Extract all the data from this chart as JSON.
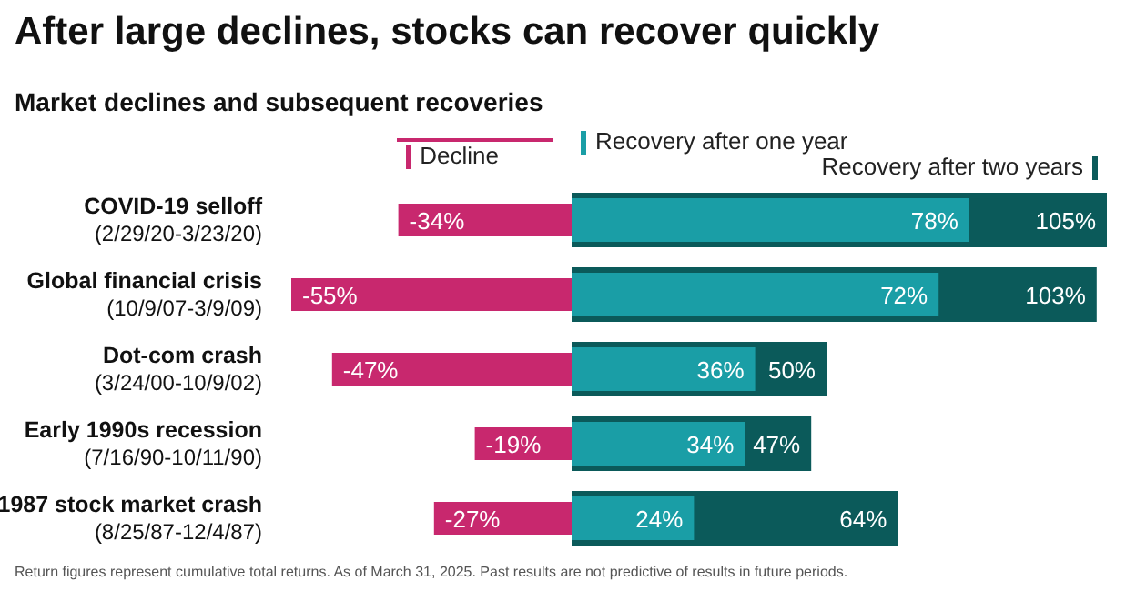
{
  "chart_data": {
    "type": "bar",
    "orientation": "horizontal",
    "title": "After large declines, stocks can recover quickly",
    "subtitle": "Market declines and subsequent recoveries",
    "categories": [
      "COVID-19 selloff\n(2/29/20-3/23/20)",
      "Global financial crisis\n(10/9/07-3/9/09)",
      "Dot-com crash\n(3/24/00-10/9/02)",
      "Early 1990s recession\n(7/16/90-10/11/90)",
      "1987 stock market crash\n(8/25/87-12/4/87)"
    ],
    "series": [
      {
        "name": "Decline",
        "color": "#c8286e",
        "values": [
          -34,
          -55,
          -47,
          -19,
          -27
        ],
        "value_labels": [
          "-34%",
          "-55%",
          "-47%",
          "-19%",
          "-27%"
        ]
      },
      {
        "name": "Recovery after one year",
        "color": "#1a9ea6",
        "values": [
          78,
          72,
          36,
          34,
          24
        ],
        "value_labels": [
          "78%",
          "72%",
          "36%",
          "34%",
          "24%"
        ]
      },
      {
        "name": "Recovery after two years",
        "color": "#0b5a5a",
        "values": [
          105,
          103,
          50,
          47,
          64
        ],
        "value_labels": [
          "105%",
          "103%",
          "50%",
          "47%",
          "64%"
        ]
      }
    ],
    "legend": "top",
    "grid": false,
    "annotations": [
      "Return figures represent cumulative total returns. As of March 31, 2025. Past results are not predictive of results in future periods."
    ]
  }
}
